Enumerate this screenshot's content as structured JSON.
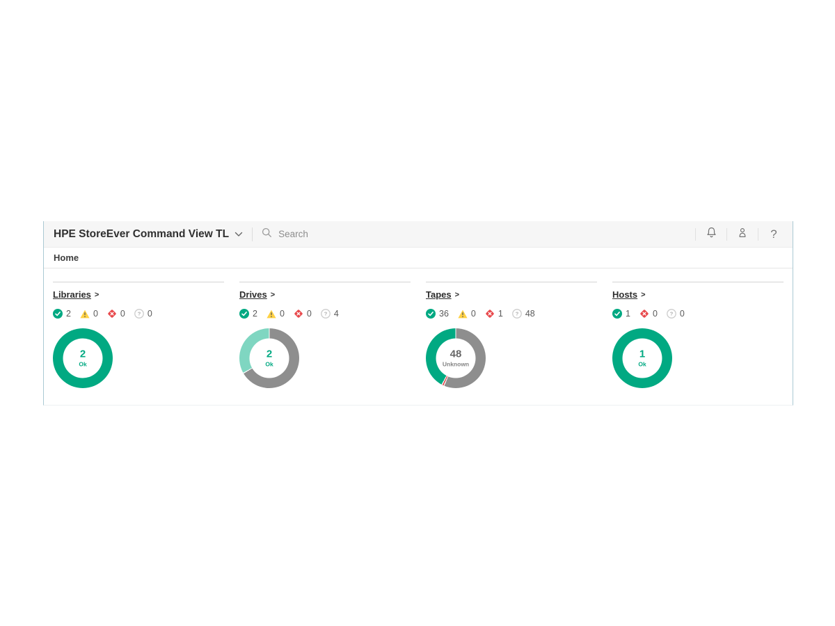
{
  "header": {
    "title": "HPE StoreEver Command View TL",
    "search_placeholder": "Search"
  },
  "nav": {
    "home": "Home"
  },
  "colors": {
    "ok": "#01a982",
    "ok_light": "#7fd6c1",
    "warning": "#ffd144",
    "warning_glyph": "#5b5b5b",
    "critical": "#e8494c",
    "unknown_ring": "#8e8e8e",
    "unknown_icon_ring": "#cccccc",
    "unknown_icon_glyph": "#aeaeae",
    "icon_gray": "#757575"
  },
  "panels": [
    {
      "title": "Libraries",
      "statuses": [
        {
          "type": "ok",
          "count": "2"
        },
        {
          "type": "warning",
          "count": "0"
        },
        {
          "type": "critical",
          "count": "0"
        },
        {
          "type": "unknown",
          "count": "0"
        }
      ],
      "donut": {
        "segments": [
          {
            "color": "#01a982",
            "value": 2
          }
        ],
        "center_value": "2",
        "center_label": "Ok",
        "center_value_color": "#01a982",
        "center_label_color": "#01a982"
      }
    },
    {
      "title": "Drives",
      "statuses": [
        {
          "type": "ok",
          "count": "2"
        },
        {
          "type": "warning",
          "count": "0"
        },
        {
          "type": "critical",
          "count": "0"
        },
        {
          "type": "unknown",
          "count": "4"
        }
      ],
      "donut": {
        "segments": [
          {
            "color": "#8e8e8e",
            "value": 4
          },
          {
            "color": "#7fd6c1",
            "value": 2
          }
        ],
        "center_value": "2",
        "center_label": "Ok",
        "center_value_color": "#01a982",
        "center_label_color": "#01a982"
      }
    },
    {
      "title": "Tapes",
      "statuses": [
        {
          "type": "ok",
          "count": "36"
        },
        {
          "type": "warning",
          "count": "0"
        },
        {
          "type": "critical",
          "count": "1"
        },
        {
          "type": "unknown",
          "count": "48"
        }
      ],
      "donut": {
        "segments": [
          {
            "color": "#8e8e8e",
            "value": 48
          },
          {
            "color": "#df4a4e",
            "value": 1
          },
          {
            "color": "#01a982",
            "value": 36
          }
        ],
        "center_value": "48",
        "center_label": "Unknown",
        "center_value_color": "#666666",
        "center_label_color": "#848484"
      }
    },
    {
      "title": "Hosts",
      "statuses": [
        {
          "type": "ok",
          "count": "1"
        },
        {
          "type": "critical",
          "count": "0"
        },
        {
          "type": "unknown",
          "count": "0"
        }
      ],
      "donut": {
        "segments": [
          {
            "color": "#01a982",
            "value": 1
          }
        ],
        "center_value": "1",
        "center_label": "Ok",
        "center_value_color": "#01a982",
        "center_label_color": "#01a982"
      }
    }
  ]
}
